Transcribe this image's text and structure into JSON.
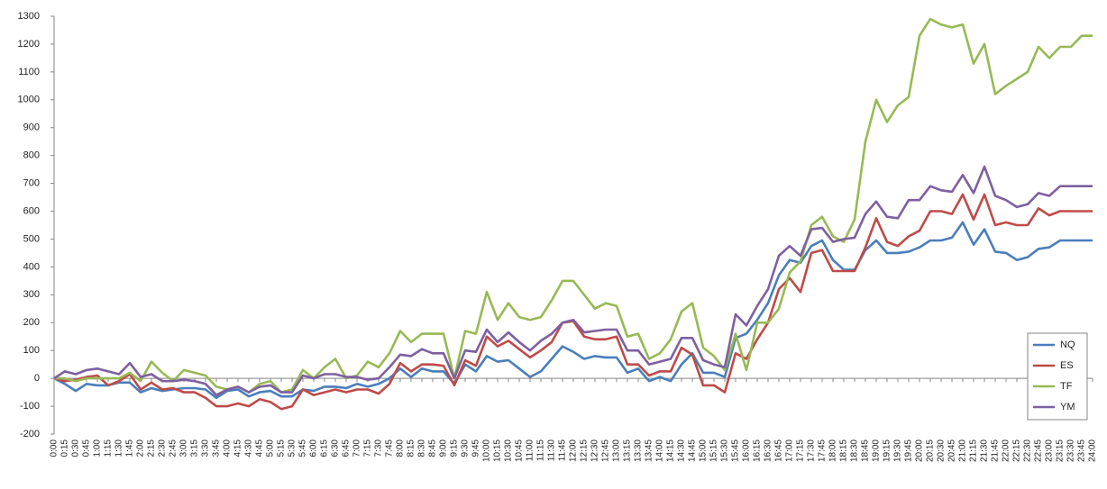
{
  "chart_data": {
    "type": "line",
    "categories": [
      "0:00",
      "0:15",
      "0:30",
      "0:45",
      "1:00",
      "1:15",
      "1:30",
      "1:45",
      "2:00",
      "2:15",
      "2:30",
      "2:45",
      "3:00",
      "3:15",
      "3:30",
      "3:45",
      "4:00",
      "4:15",
      "4:30",
      "4:45",
      "5:00",
      "5:15",
      "5:30",
      "5:45",
      "6:00",
      "6:15",
      "6:30",
      "6:45",
      "7:00",
      "7:15",
      "7:30",
      "7:45",
      "8:00",
      "8:15",
      "8:30",
      "8:45",
      "9:00",
      "9:15",
      "9:30",
      "9:45",
      "10:00",
      "10:15",
      "10:30",
      "10:45",
      "11:00",
      "11:15",
      "11:30",
      "11:45",
      "12:00",
      "12:15",
      "12:30",
      "12:45",
      "13:00",
      "13:15",
      "13:30",
      "13:45",
      "14:00",
      "14:15",
      "14:30",
      "14:45",
      "15:00",
      "15:15",
      "15:30",
      "15:45",
      "16:00",
      "16:15",
      "16:30",
      "16:45",
      "17:00",
      "17:15",
      "17:30",
      "17:45",
      "18:00",
      "18:15",
      "18:30",
      "18:45",
      "19:00",
      "19:15",
      "19:30",
      "19:45",
      "20:00",
      "20:15",
      "20:30",
      "20:45",
      "21:00",
      "21:15",
      "21:30",
      "21:45",
      "22:00",
      "22:15",
      "22:30",
      "22:45",
      "23:00",
      "23:15",
      "23:30",
      "23:45",
      "24:00"
    ],
    "series": [
      {
        "name": "NQ",
        "color": "#4a7ebb",
        "values": [
          0,
          -20,
          -45,
          -20,
          -25,
          -25,
          -15,
          -15,
          -50,
          -35,
          -45,
          -40,
          -35,
          -35,
          -40,
          -70,
          -45,
          -40,
          -65,
          -50,
          -45,
          -65,
          -65,
          -40,
          -45,
          -30,
          -30,
          -35,
          -20,
          -30,
          -20,
          0,
          35,
          5,
          35,
          25,
          25,
          -20,
          50,
          25,
          80,
          60,
          65,
          35,
          5,
          25,
          70,
          115,
          95,
          70,
          80,
          75,
          75,
          20,
          35,
          -10,
          5,
          -10,
          50,
          90,
          20,
          20,
          5,
          145,
          160,
          210,
          270,
          370,
          425,
          415,
          475,
          495,
          425,
          390,
          390,
          460,
          495,
          450,
          450,
          455,
          470,
          495,
          495,
          505,
          560,
          480,
          535,
          455,
          450,
          425,
          435,
          465,
          470,
          495,
          495,
          495,
          495
        ]
      },
      {
        "name": "ES",
        "color": "#be4b48",
        "values": [
          0,
          -10,
          -5,
          5,
          10,
          -25,
          -10,
          15,
          -40,
          -15,
          -40,
          -35,
          -50,
          -50,
          -70,
          -100,
          -100,
          -90,
          -100,
          -75,
          -85,
          -110,
          -100,
          -40,
          -60,
          -50,
          -40,
          -50,
          -40,
          -40,
          -55,
          -20,
          55,
          25,
          50,
          50,
          45,
          -25,
          65,
          45,
          150,
          115,
          135,
          105,
          75,
          100,
          130,
          200,
          205,
          150,
          140,
          140,
          150,
          50,
          50,
          10,
          25,
          25,
          110,
          85,
          -25,
          -25,
          -50,
          90,
          70,
          140,
          200,
          320,
          360,
          310,
          450,
          460,
          385,
          385,
          385,
          470,
          575,
          490,
          475,
          510,
          530,
          600,
          600,
          590,
          660,
          570,
          660,
          550,
          560,
          550,
          550,
          610,
          585,
          600,
          600,
          600,
          600
        ]
      },
      {
        "name": "TF",
        "color": "#98b954",
        "values": [
          0,
          0,
          -10,
          0,
          0,
          0,
          0,
          20,
          -10,
          60,
          20,
          -10,
          30,
          20,
          10,
          -30,
          -40,
          -30,
          -50,
          -20,
          -10,
          -50,
          -40,
          30,
          0,
          40,
          70,
          0,
          10,
          60,
          40,
          90,
          170,
          130,
          160,
          160,
          160,
          0,
          170,
          160,
          310,
          210,
          270,
          220,
          210,
          220,
          280,
          350,
          350,
          300,
          250,
          270,
          260,
          150,
          160,
          70,
          90,
          140,
          240,
          270,
          110,
          80,
          30,
          160,
          30,
          200,
          200,
          250,
          380,
          420,
          550,
          580,
          510,
          490,
          570,
          850,
          1000,
          920,
          980,
          1010,
          1230,
          1290,
          1270,
          1260,
          1270,
          1130,
          1200,
          1020,
          1050,
          1075,
          1100,
          1190,
          1150,
          1190,
          1190,
          1230,
          1230
        ]
      },
      {
        "name": "YM",
        "color": "#7d60a0",
        "values": [
          0,
          25,
          15,
          30,
          35,
          25,
          15,
          55,
          5,
          15,
          -10,
          -10,
          -5,
          -10,
          -20,
          -60,
          -40,
          -30,
          -50,
          -30,
          -25,
          -50,
          -50,
          10,
          0,
          15,
          15,
          5,
          5,
          -5,
          0,
          40,
          85,
          80,
          105,
          90,
          90,
          0,
          100,
          95,
          175,
          130,
          165,
          130,
          100,
          135,
          160,
          200,
          210,
          165,
          170,
          175,
          175,
          100,
          100,
          50,
          60,
          70,
          145,
          145,
          65,
          50,
          40,
          230,
          190,
          260,
          320,
          440,
          475,
          440,
          535,
          540,
          490,
          500,
          505,
          590,
          635,
          580,
          575,
          640,
          640,
          690,
          675,
          670,
          730,
          665,
          760,
          655,
          640,
          615,
          625,
          665,
          655,
          690,
          690,
          690,
          690
        ]
      }
    ],
    "ylim": [
      -200,
      1300
    ],
    "yticks": [
      -200,
      -100,
      0,
      100,
      200,
      300,
      400,
      500,
      600,
      700,
      800,
      900,
      1000,
      1100,
      1200,
      1300
    ],
    "grid": false,
    "legend": "right"
  }
}
